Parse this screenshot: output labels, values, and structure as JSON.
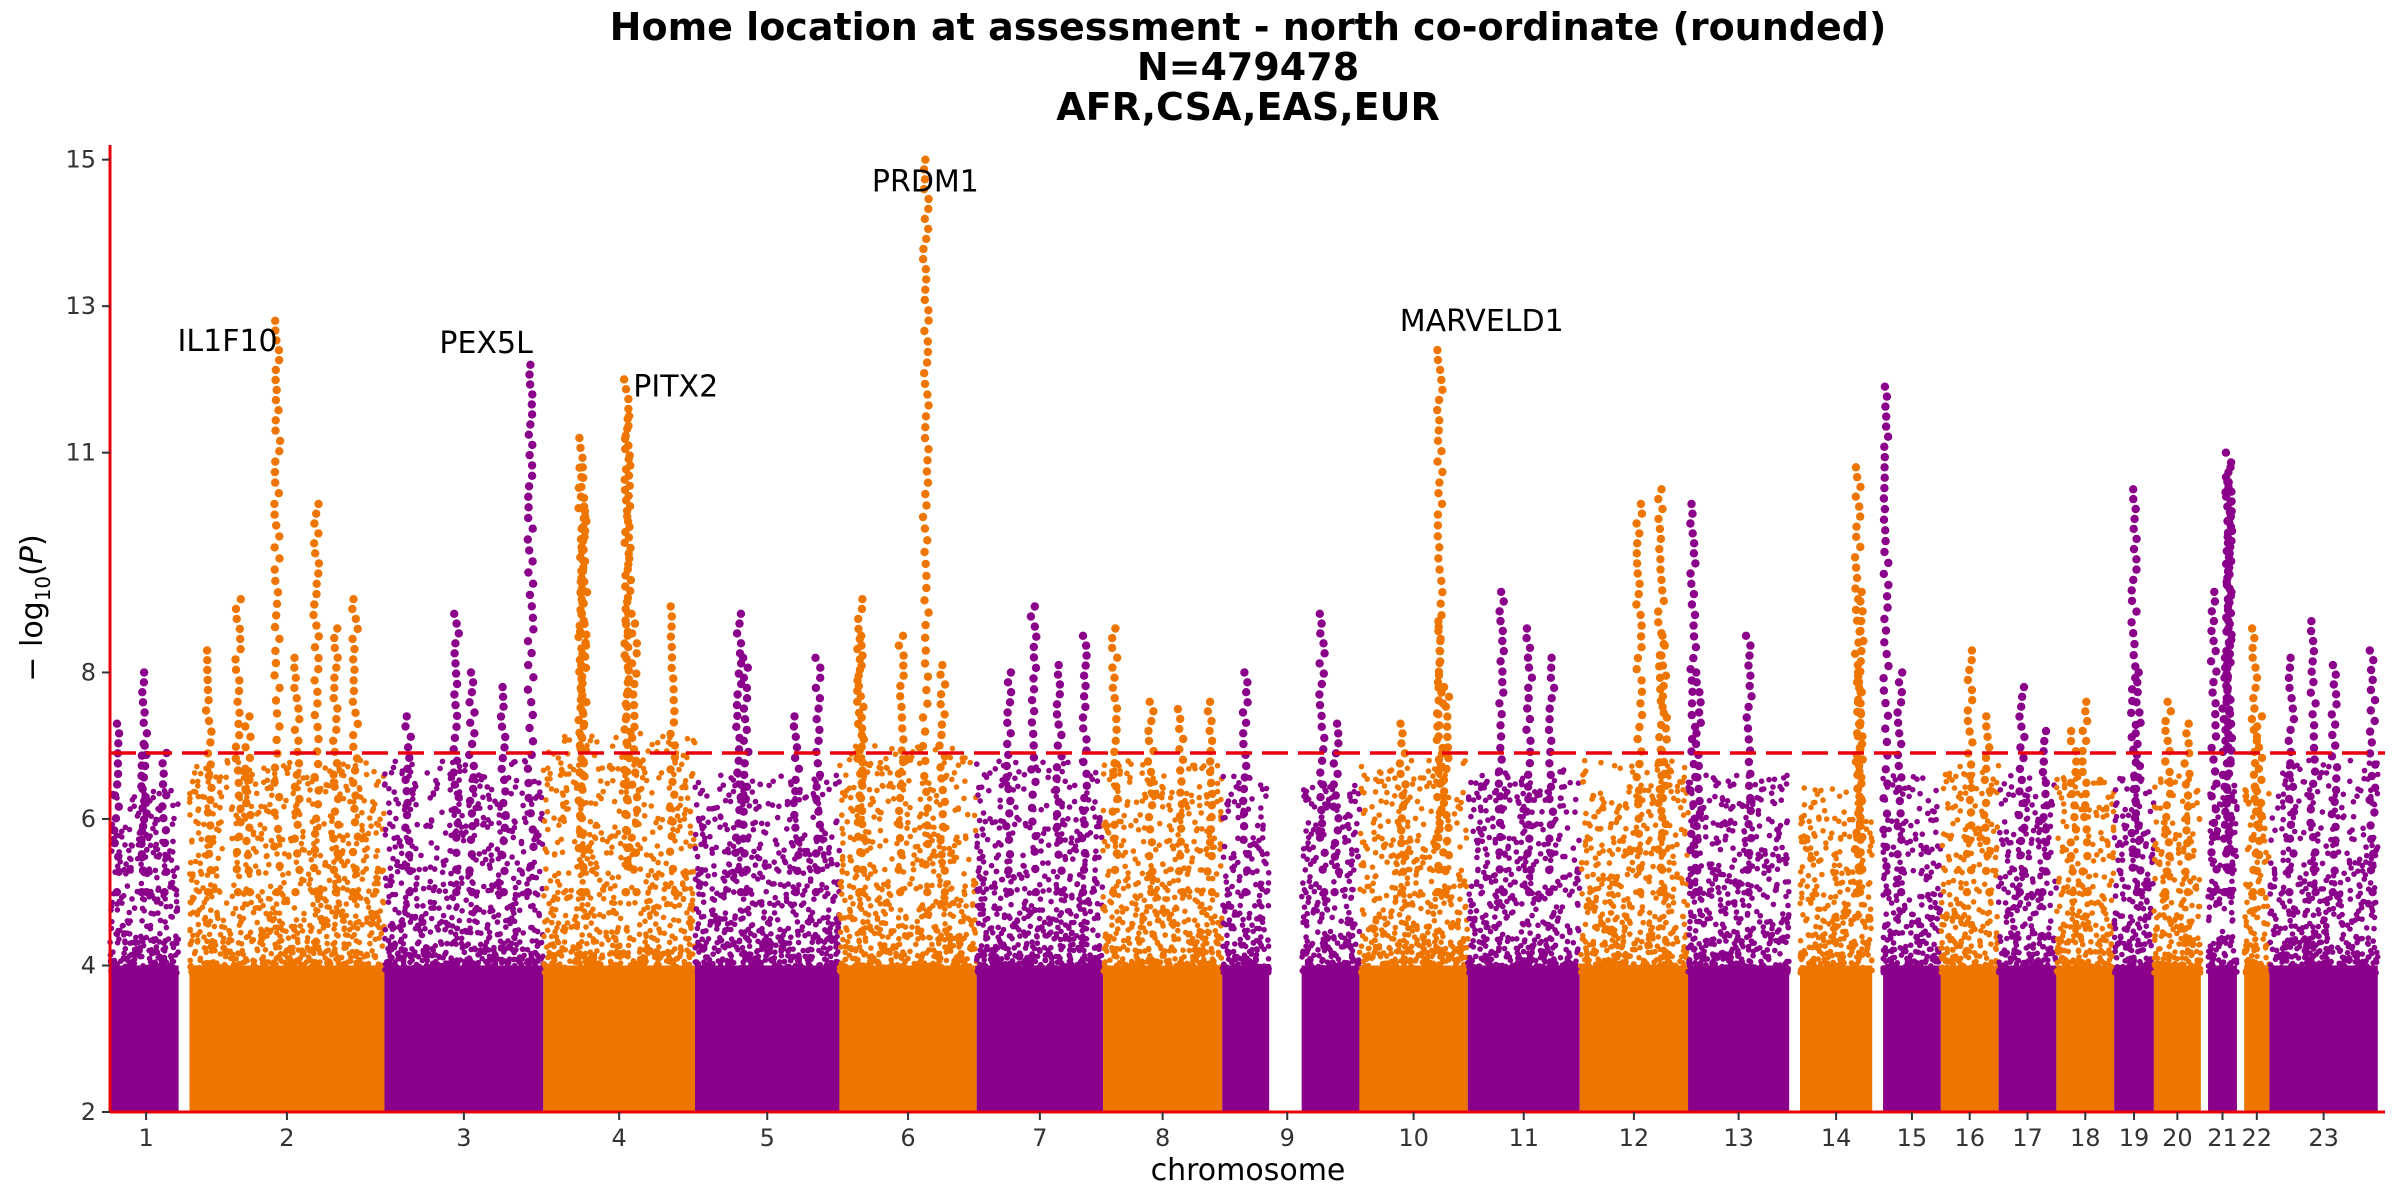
{
  "chart_data": {
    "type": "scatter",
    "subtype": "manhattan",
    "title_lines": [
      "Home location at assessment - north co-ordinate (rounded)",
      "N=479478",
      "AFR,CSA,EAS,EUR"
    ],
    "xlabel": "chromosome",
    "ylabel": "-log10(P)",
    "ylim": [
      2,
      15.2
    ],
    "yticks": [
      2,
      4,
      6,
      8,
      11,
      13,
      15
    ],
    "yticks_note": "tick labels as printed",
    "significance_threshold": 6.9,
    "colors": {
      "odd": "#8b008b",
      "even": "#ee7600",
      "threshold": "#e8000b",
      "axis": "#e8000b"
    },
    "chromosomes": [
      {
        "label": "1",
        "color": "odd",
        "start": 0,
        "end": 9.5,
        "gap_after": 1.5,
        "base_top": 4.9,
        "noise_top": 6.4,
        "peaks": [
          {
            "pos": 0.1,
            "p": 7.3
          },
          {
            "pos": 0.5,
            "p": 7.0
          },
          {
            "pos": 0.8,
            "p": 6.9
          },
          {
            "pos": 0.5,
            "p": 8.0
          }
        ]
      },
      {
        "label": "2",
        "color": "even",
        "start": 11,
        "end": 38,
        "base_top": 5.2,
        "noise_top": 6.8,
        "peaks": [
          {
            "pos": 0.1,
            "p": 8.3
          },
          {
            "pos": 0.25,
            "p": 9.0
          },
          {
            "pos": 0.3,
            "p": 7.4
          },
          {
            "pos": 0.45,
            "p": 12.8
          },
          {
            "pos": 0.55,
            "p": 8.2
          },
          {
            "pos": 0.65,
            "p": 10.3
          },
          {
            "pos": 0.75,
            "p": 8.6
          },
          {
            "pos": 0.85,
            "p": 9.0
          }
        ]
      },
      {
        "label": "3",
        "color": "odd",
        "start": 38,
        "end": 60,
        "base_top": 5.4,
        "noise_top": 6.8,
        "peaks": [
          {
            "pos": 0.15,
            "p": 7.4
          },
          {
            "pos": 0.45,
            "p": 8.8
          },
          {
            "pos": 0.55,
            "p": 8.0
          },
          {
            "pos": 0.75,
            "p": 7.8
          },
          {
            "pos": 0.92,
            "p": 12.2
          }
        ]
      },
      {
        "label": "4",
        "color": "even",
        "start": 60,
        "end": 81,
        "base_top": 5.8,
        "noise_top": 7.2,
        "peaks": [
          {
            "pos": 0.25,
            "p": 11.2
          },
          {
            "pos": 0.26,
            "p": 10.8
          },
          {
            "pos": 0.27,
            "p": 10.2
          },
          {
            "pos": 0.55,
            "p": 12.0
          },
          {
            "pos": 0.56,
            "p": 11.5
          },
          {
            "pos": 0.6,
            "p": 8.8
          },
          {
            "pos": 0.85,
            "p": 8.9
          }
        ]
      },
      {
        "label": "5",
        "color": "odd",
        "start": 81,
        "end": 101,
        "base_top": 5.0,
        "noise_top": 6.6,
        "peaks": [
          {
            "pos": 0.3,
            "p": 8.8
          },
          {
            "pos": 0.35,
            "p": 8.2
          },
          {
            "pos": 0.7,
            "p": 7.4
          },
          {
            "pos": 0.85,
            "p": 8.2
          }
        ]
      },
      {
        "label": "6",
        "color": "even",
        "start": 101,
        "end": 120,
        "base_top": 5.6,
        "noise_top": 7.0,
        "peaks": [
          {
            "pos": 0.15,
            "p": 9.0
          },
          {
            "pos": 0.16,
            "p": 8.5
          },
          {
            "pos": 0.45,
            "p": 8.5
          },
          {
            "pos": 0.63,
            "p": 15.0
          },
          {
            "pos": 0.75,
            "p": 8.1
          }
        ]
      },
      {
        "label": "7",
        "color": "odd",
        "start": 120,
        "end": 137.5,
        "base_top": 5.2,
        "noise_top": 6.8,
        "peaks": [
          {
            "pos": 0.25,
            "p": 8.0
          },
          {
            "pos": 0.45,
            "p": 8.9
          },
          {
            "pos": 0.65,
            "p": 8.1
          },
          {
            "pos": 0.85,
            "p": 8.5
          }
        ]
      },
      {
        "label": "8",
        "color": "even",
        "start": 137.5,
        "end": 154,
        "base_top": 5.2,
        "noise_top": 6.8,
        "peaks": [
          {
            "pos": 0.1,
            "p": 8.6
          },
          {
            "pos": 0.4,
            "p": 7.6
          },
          {
            "pos": 0.65,
            "p": 7.5
          },
          {
            "pos": 0.9,
            "p": 7.6
          }
        ]
      },
      {
        "label": "9",
        "color": "odd",
        "start": 154,
        "end": 160.5,
        "gap_before": 5,
        "base_top": 5.0,
        "noise_top": 6.6,
        "peaks": [
          {
            "pos": 0.5,
            "p": 8.0
          }
        ]
      },
      {
        "label": "9",
        "color": "odd",
        "start": 165,
        "end": 173,
        "base_top": 5.0,
        "noise_top": 6.5,
        "peaks": [
          {
            "pos": 0.35,
            "p": 8.8
          },
          {
            "pos": 0.6,
            "p": 7.3
          }
        ]
      },
      {
        "label": "10",
        "color": "even",
        "start": 173,
        "end": 188,
        "base_top": 5.2,
        "noise_top": 6.8,
        "peaks": [
          {
            "pos": 0.4,
            "p": 7.3
          },
          {
            "pos": 0.75,
            "p": 8.7
          },
          {
            "pos": 0.74,
            "p": 12.4
          },
          {
            "pos": 0.8,
            "p": 7.8
          }
        ]
      },
      {
        "label": "11",
        "color": "odd",
        "start": 188,
        "end": 203.5,
        "base_top": 5.1,
        "noise_top": 6.7,
        "peaks": [
          {
            "pos": 0.3,
            "p": 9.1
          },
          {
            "pos": 0.55,
            "p": 8.6
          },
          {
            "pos": 0.75,
            "p": 8.2
          }
        ]
      },
      {
        "label": "12",
        "color": "even",
        "start": 203.5,
        "end": 218.5,
        "base_top": 5.1,
        "noise_top": 6.8,
        "peaks": [
          {
            "pos": 0.55,
            "p": 10.3
          },
          {
            "pos": 0.75,
            "p": 10.5
          },
          {
            "pos": 0.78,
            "p": 8.5
          }
        ]
      },
      {
        "label": "13",
        "color": "odd",
        "start": 218.5,
        "end": 232.5,
        "gap_after": 1.5,
        "base_top": 5.0,
        "noise_top": 6.6,
        "peaks": [
          {
            "pos": 0.05,
            "p": 10.3
          },
          {
            "pos": 0.1,
            "p": 8.0
          },
          {
            "pos": 0.6,
            "p": 8.5
          }
        ]
      },
      {
        "label": "14",
        "color": "even",
        "start": 234,
        "end": 244,
        "gap_after": 1.5,
        "base_top": 4.9,
        "noise_top": 6.5,
        "peaks": [
          {
            "pos": 0.8,
            "p": 10.8
          },
          {
            "pos": 0.85,
            "p": 9.1
          },
          {
            "pos": 0.82,
            "p": 8.0
          }
        ]
      },
      {
        "label": "15",
        "color": "odd",
        "start": 245.5,
        "end": 253.5,
        "base_top": 5.0,
        "noise_top": 6.6,
        "peaks": [
          {
            "pos": 0.05,
            "p": 11.9
          },
          {
            "pos": 0.3,
            "p": 8.0
          }
        ]
      },
      {
        "label": "16",
        "color": "even",
        "start": 253.5,
        "end": 261.5,
        "base_top": 5.2,
        "noise_top": 6.8,
        "peaks": [
          {
            "pos": 0.5,
            "p": 8.3
          },
          {
            "pos": 0.8,
            "p": 7.4
          }
        ]
      },
      {
        "label": "17",
        "color": "odd",
        "start": 261.5,
        "end": 269.5,
        "base_top": 5.0,
        "noise_top": 6.6,
        "peaks": [
          {
            "pos": 0.4,
            "p": 7.8
          },
          {
            "pos": 0.8,
            "p": 7.2
          }
        ]
      },
      {
        "label": "18",
        "color": "even",
        "start": 269.5,
        "end": 277.5,
        "base_top": 5.0,
        "noise_top": 6.6,
        "peaks": [
          {
            "pos": 0.5,
            "p": 7.6
          },
          {
            "pos": 0.3,
            "p": 7.2
          }
        ]
      },
      {
        "label": "19",
        "color": "odd",
        "start": 277.5,
        "end": 283,
        "base_top": 5.0,
        "noise_top": 6.6,
        "peaks": [
          {
            "pos": 0.5,
            "p": 10.5
          },
          {
            "pos": 0.6,
            "p": 8.0
          }
        ]
      },
      {
        "label": "20",
        "color": "even",
        "start": 283,
        "end": 289.5,
        "gap_after": 1,
        "base_top": 5.0,
        "noise_top": 6.6,
        "peaks": [
          {
            "pos": 0.3,
            "p": 7.6
          },
          {
            "pos": 0.7,
            "p": 7.3
          }
        ]
      },
      {
        "label": "21",
        "color": "odd",
        "start": 290.5,
        "end": 294.5,
        "gap_after": 1,
        "base_top": 4.9,
        "noise_top": 6.5,
        "peaks": [
          {
            "pos": 0.2,
            "p": 9.1
          },
          {
            "pos": 0.7,
            "p": 11.0
          },
          {
            "pos": 0.72,
            "p": 10.8
          },
          {
            "pos": 0.74,
            "p": 10.6
          },
          {
            "pos": 0.6,
            "p": 8.2
          }
        ]
      },
      {
        "label": "22",
        "color": "even",
        "start": 295.5,
        "end": 299,
        "base_top": 4.9,
        "noise_top": 6.5,
        "peaks": [
          {
            "pos": 0.4,
            "p": 8.6
          },
          {
            "pos": 0.6,
            "p": 7.4
          }
        ]
      },
      {
        "label": "23",
        "color": "odd",
        "start": 299,
        "end": 314,
        "base_top": 5.1,
        "noise_top": 6.8,
        "peaks": [
          {
            "pos": 0.2,
            "p": 8.2
          },
          {
            "pos": 0.4,
            "p": 8.7
          },
          {
            "pos": 0.6,
            "p": 8.1
          },
          {
            "pos": 0.95,
            "p": 8.3
          }
        ]
      }
    ],
    "tick_positions": [
      {
        "label": "1",
        "x": 5
      },
      {
        "label": "2",
        "x": 24.5
      },
      {
        "label": "3",
        "x": 49
      },
      {
        "label": "4",
        "x": 70.5
      },
      {
        "label": "5",
        "x": 91
      },
      {
        "label": "6",
        "x": 110.5
      },
      {
        "label": "7",
        "x": 128.75
      },
      {
        "label": "8",
        "x": 145.75
      },
      {
        "label": "9",
        "x": 163
      },
      {
        "label": "10",
        "x": 180.5
      },
      {
        "label": "11",
        "x": 195.75
      },
      {
        "label": "12",
        "x": 211
      },
      {
        "label": "13",
        "x": 225.5
      },
      {
        "label": "14",
        "x": 239
      },
      {
        "label": "15",
        "x": 249.5
      },
      {
        "label": "16",
        "x": 257.5
      },
      {
        "label": "17",
        "x": 265.5
      },
      {
        "label": "18",
        "x": 273.5
      },
      {
        "label": "19",
        "x": 280.25
      },
      {
        "label": "20",
        "x": 286.25
      },
      {
        "label": "21",
        "x": 292.5
      },
      {
        "label": "22",
        "x": 297.25
      },
      {
        "label": "23",
        "x": 306.5
      }
    ],
    "annotations": [
      {
        "label": "IL1F10",
        "x": 23.2,
        "y": 12.8
      },
      {
        "label": "PEX5L",
        "x": 59.0,
        "y": 12.2
      },
      {
        "label": "PITX2",
        "x": 70.8,
        "y": 11.6
      },
      {
        "label": "PRDM1",
        "x": 112.9,
        "y": 15.0
      },
      {
        "label": "MARVELD1",
        "x": 183.0,
        "y": 12.5
      }
    ]
  }
}
